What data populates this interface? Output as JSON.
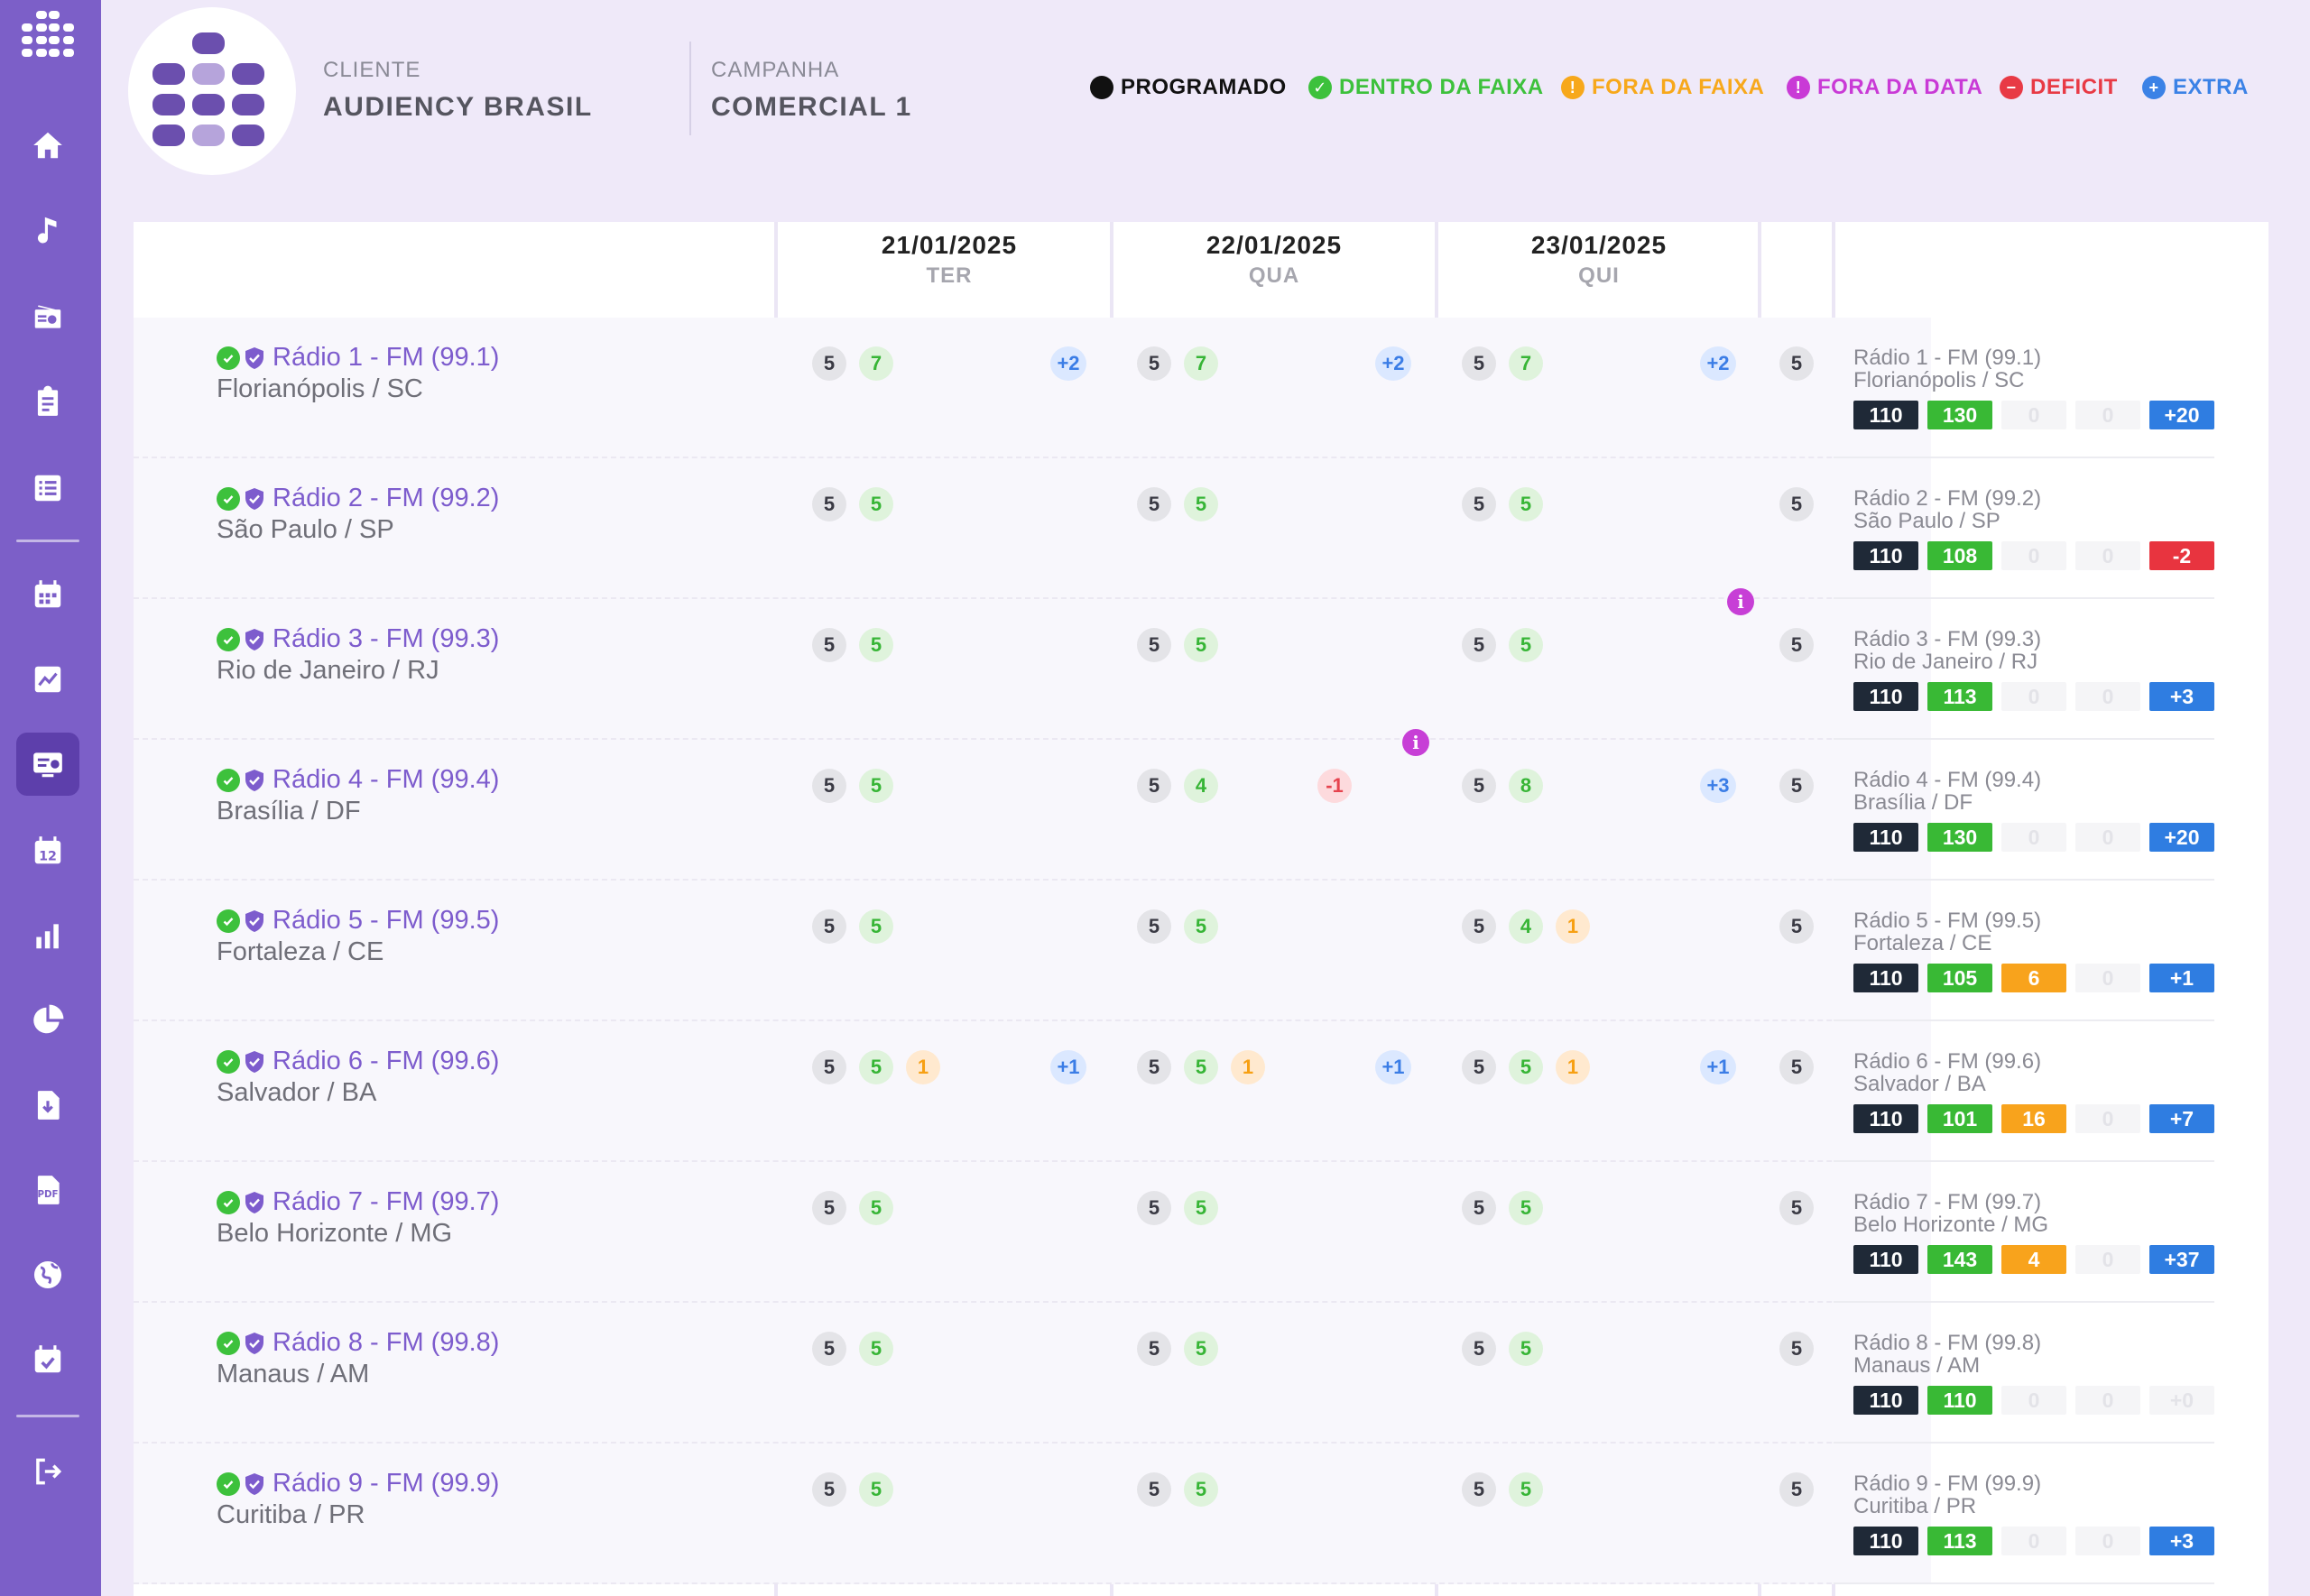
{
  "header": {
    "client_label": "CLIENTE",
    "client_value": "AUDIENCY BRASIL",
    "campaign_label": "CAMPANHA",
    "campaign_value": "COMERCIAL 1"
  },
  "legend": [
    {
      "label": "PROGRAMADO",
      "color": "#111111",
      "symbol": ""
    },
    {
      "label": "DENTRO DA FAIXA",
      "color": "#3dc13c",
      "symbol": "✓"
    },
    {
      "label": "FORA DA FAIXA",
      "color": "#f7a81b",
      "symbol": "!"
    },
    {
      "label": "FORA DA DATA",
      "color": "#c93ad6",
      "symbol": "!"
    },
    {
      "label": "DEFICIT",
      "color": "#e83a45",
      "symbol": "−"
    },
    {
      "label": "EXTRA",
      "color": "#3b82e6",
      "symbol": "+"
    }
  ],
  "dates": [
    {
      "date": "21/01/2025",
      "weekday": "TER"
    },
    {
      "date": "22/01/2025",
      "weekday": "QUA"
    },
    {
      "date": "23/01/2025",
      "weekday": "QUI"
    }
  ],
  "stations": [
    {
      "name": "Rádio 1 - FM (99.1)",
      "city": "Florianópolis / SC",
      "days": [
        {
          "p": "5",
          "g": "7",
          "e": "+2"
        },
        {
          "p": "5",
          "g": "7",
          "e": "+2"
        },
        {
          "p": "5",
          "g": "7",
          "e": "+2"
        }
      ],
      "partial": "5",
      "summary": {
        "programado": "110",
        "dentro": "130",
        "fora_faixa": "0",
        "fora_data": "0",
        "saldo": "+20",
        "saldo_type": "extra"
      }
    },
    {
      "name": "Rádio 2 - FM (99.2)",
      "city": "São Paulo / SP",
      "days": [
        {
          "p": "5",
          "g": "5"
        },
        {
          "p": "5",
          "g": "5"
        },
        {
          "p": "5",
          "g": "5"
        }
      ],
      "partial": "5",
      "summary": {
        "programado": "110",
        "dentro": "108",
        "fora_faixa": "0",
        "fora_data": "0",
        "saldo": "-2",
        "saldo_type": "deficit"
      }
    },
    {
      "name": "Rádio 3 - FM (99.3)",
      "city": "Rio de Janeiro / RJ",
      "days": [
        {
          "p": "5",
          "g": "5"
        },
        {
          "p": "5",
          "g": "5"
        },
        {
          "p": "5",
          "g": "5",
          "info": "i"
        }
      ],
      "partial": "5",
      "summary": {
        "programado": "110",
        "dentro": "113",
        "fora_faixa": "0",
        "fora_data": "0",
        "saldo": "+3",
        "saldo_type": "extra"
      }
    },
    {
      "name": "Rádio 4 - FM (99.4)",
      "city": "Brasília / DF",
      "days": [
        {
          "p": "5",
          "g": "5"
        },
        {
          "p": "5",
          "g": "4",
          "d": "-1",
          "info": "i"
        },
        {
          "p": "5",
          "g": "8",
          "e": "+3"
        }
      ],
      "partial": "5",
      "summary": {
        "programado": "110",
        "dentro": "130",
        "fora_faixa": "0",
        "fora_data": "0",
        "saldo": "+20",
        "saldo_type": "extra"
      }
    },
    {
      "name": "Rádio 5 - FM (99.5)",
      "city": "Fortaleza / CE",
      "days": [
        {
          "p": "5",
          "g": "5"
        },
        {
          "p": "5",
          "g": "5"
        },
        {
          "p": "5",
          "g": "4",
          "o": "1"
        }
      ],
      "partial": "5",
      "summary": {
        "programado": "110",
        "dentro": "105",
        "fora_faixa": "6",
        "fora_data": "0",
        "saldo": "+1",
        "saldo_type": "extra"
      }
    },
    {
      "name": "Rádio 6 - FM (99.6)",
      "city": "Salvador / BA",
      "days": [
        {
          "p": "5",
          "g": "5",
          "o": "1",
          "e": "+1"
        },
        {
          "p": "5",
          "g": "5",
          "o": "1",
          "e": "+1"
        },
        {
          "p": "5",
          "g": "5",
          "o": "1",
          "e": "+1"
        }
      ],
      "partial": "5",
      "summary": {
        "programado": "110",
        "dentro": "101",
        "fora_faixa": "16",
        "fora_data": "0",
        "saldo": "+7",
        "saldo_type": "extra"
      }
    },
    {
      "name": "Rádio 7 - FM (99.7)",
      "city": "Belo Horizonte / MG",
      "days": [
        {
          "p": "5",
          "g": "5"
        },
        {
          "p": "5",
          "g": "5"
        },
        {
          "p": "5",
          "g": "5"
        }
      ],
      "partial": "5",
      "summary": {
        "programado": "110",
        "dentro": "143",
        "fora_faixa": "4",
        "fora_data": "0",
        "saldo": "+37",
        "saldo_type": "extra"
      }
    },
    {
      "name": "Rádio 8 - FM (99.8)",
      "city": "Manaus / AM",
      "days": [
        {
          "p": "5",
          "g": "5"
        },
        {
          "p": "5",
          "g": "5"
        },
        {
          "p": "5",
          "g": "5"
        }
      ],
      "partial": "5",
      "summary": {
        "programado": "110",
        "dentro": "110",
        "fora_faixa": "0",
        "fora_data": "0",
        "saldo": "+0",
        "saldo_type": "zero"
      }
    },
    {
      "name": "Rádio 9 - FM (99.9)",
      "city": "Curitiba / PR",
      "days": [
        {
          "p": "5",
          "g": "5"
        },
        {
          "p": "5",
          "g": "5"
        },
        {
          "p": "5",
          "g": "5"
        }
      ],
      "partial": "5",
      "summary": {
        "programado": "110",
        "dentro": "113",
        "fora_faixa": "0",
        "fora_data": "0",
        "saldo": "+3",
        "saldo_type": "extra"
      }
    }
  ],
  "sidebar": {
    "items": [
      {
        "icon": "home-icon"
      },
      {
        "icon": "music-icon"
      },
      {
        "icon": "radio-icon"
      },
      {
        "icon": "clipboard-icon"
      },
      {
        "icon": "list-icon"
      },
      {
        "icon": "calendar-icon"
      },
      {
        "icon": "chart-line-icon"
      },
      {
        "icon": "monitor-icon",
        "active": true
      },
      {
        "icon": "calendar-12-icon"
      },
      {
        "icon": "bar-chart-icon"
      },
      {
        "icon": "pie-chart-icon"
      },
      {
        "icon": "download-file-icon"
      },
      {
        "icon": "pdf-icon"
      },
      {
        "icon": "globe-icon"
      },
      {
        "icon": "calendar-check-icon"
      },
      {
        "icon": "logout-icon"
      }
    ],
    "pdf_label": "PDF",
    "calendar_day": "12"
  }
}
